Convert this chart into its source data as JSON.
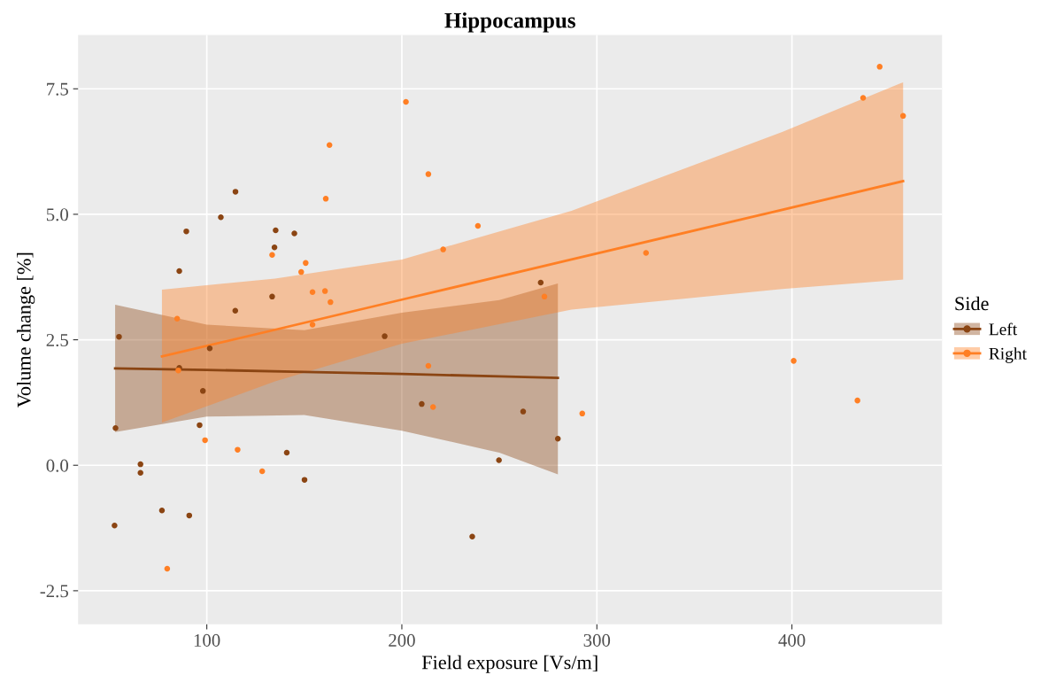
{
  "chart_data": {
    "type": "scatter",
    "title": "Hippocampus",
    "xlabel": "Field exposure [Vs/m]",
    "ylabel": "Volume change [%]",
    "legend_title": "Side",
    "legend": "right",
    "grid": true,
    "marker": "circle",
    "xlim": [
      34,
      477
    ],
    "ylim": [
      -3.17,
      8.57
    ],
    "xticks": [
      100,
      200,
      300,
      400
    ],
    "yticks": [
      {
        "value": -2.5,
        "label": "-2.5"
      },
      {
        "value": 0,
        "label": "0.0"
      },
      2.5,
      {
        "value": 5,
        "label": "5.0"
      },
      7.5
    ],
    "series": [
      {
        "name": "Left",
        "color": "#8b4513",
        "x": [
          53.2,
          55,
          52.7,
          66,
          66,
          77,
          91,
          96.3,
          98,
          141,
          85.9,
          101.5,
          114.7,
          107.2,
          89.5,
          135.3,
          144.9,
          134.7,
          85.9,
          133.5,
          114.6,
          271.2,
          191.2,
          210.2,
          262.2,
          280,
          249.8,
          150.1,
          236.1
        ],
        "values": [
          0.74,
          2.56,
          -1.2,
          0.02,
          -0.15,
          -0.9,
          -1.0,
          0.8,
          1.48,
          0.25,
          1.94,
          2.33,
          5.45,
          4.94,
          4.66,
          4.68,
          4.62,
          4.34,
          3.87,
          3.36,
          3.08,
          3.64,
          2.57,
          1.22,
          1.07,
          0.53,
          0.1,
          -0.29,
          -1.42
        ]
      },
      {
        "name": "Right",
        "color": "#ff7f24",
        "x": [
          133.5,
          84.8,
          202.1,
          162.9,
          213.6,
          161,
          239,
          150.7,
          148.4,
          221.2,
          154.2,
          160.6,
          163.4,
          154.2,
          273.1,
          213.6,
          216,
          292.5,
          99.1,
          115.8,
          128.4,
          79.7,
          85.4,
          445,
          436.5,
          457,
          325.2,
          400.9,
          433.6
        ],
        "values": [
          4.19,
          2.92,
          7.24,
          6.38,
          5.8,
          5.31,
          4.77,
          4.03,
          3.85,
          4.3,
          3.45,
          3.47,
          3.25,
          2.8,
          3.36,
          1.98,
          1.16,
          1.03,
          0.5,
          0.31,
          -0.12,
          -2.06,
          1.89,
          7.94,
          7.32,
          6.96,
          4.23,
          2.08,
          1.29
        ]
      },
      {
        "type": "line",
        "marker": "none",
        "color": "#8b4513",
        "x": [
          53,
          100,
          150,
          200,
          250,
          280
        ],
        "values": [
          1.93,
          1.9,
          1.86,
          1.82,
          1.77,
          1.74
        ],
        "lower": [
          0.66,
          0.97,
          1.0,
          0.69,
          0.25,
          -0.18
        ],
        "upper": [
          3.2,
          2.8,
          2.69,
          3.04,
          3.29,
          3.62
        ]
      },
      {
        "type": "line",
        "marker": "none",
        "color": "#ff7f24",
        "x": [
          77,
          135,
          200,
          287,
          395,
          457
        ],
        "values": [
          2.17,
          2.7,
          3.3,
          4.1,
          5.09,
          5.66
        ],
        "lower": [
          0.85,
          1.67,
          2.42,
          3.1,
          3.51,
          3.7
        ],
        "upper": [
          3.5,
          3.72,
          4.1,
          5.07,
          6.64,
          7.63
        ]
      }
    ]
  }
}
